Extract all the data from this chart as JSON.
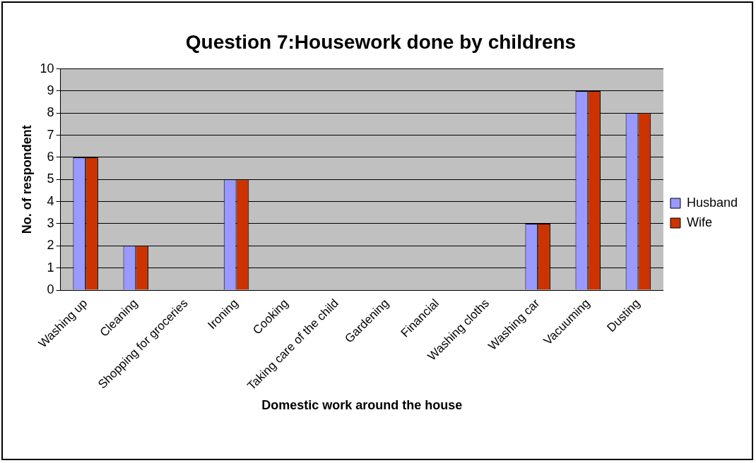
{
  "chart_data": {
    "type": "bar",
    "title": "Question 7:Housework done by childrens",
    "xlabel": "Domestic work around the house",
    "ylabel": "No. of respondent",
    "categories": [
      "Washing up",
      "Cleaning",
      "Shopping for groceries",
      "Ironing",
      "Cooking",
      "Taking care of the child",
      "Gardening",
      "Financial",
      "Washing cloths",
      "Washing car",
      "Vacuuming",
      "Dusting"
    ],
    "series": [
      {
        "name": "Husband",
        "color": "#9999ff",
        "values": [
          6,
          2,
          0,
          5,
          0,
          0,
          0,
          0,
          0,
          3,
          9,
          8
        ]
      },
      {
        "name": "Wife",
        "color": "#cc3300",
        "values": [
          6,
          2,
          0,
          5,
          0,
          0,
          0,
          0,
          0,
          3,
          9,
          8
        ]
      }
    ],
    "ylim": [
      0,
      10
    ],
    "yticks": [
      0,
      1,
      2,
      3,
      4,
      5,
      6,
      7,
      8,
      9,
      10
    ],
    "grid": "y",
    "legend": "right"
  }
}
